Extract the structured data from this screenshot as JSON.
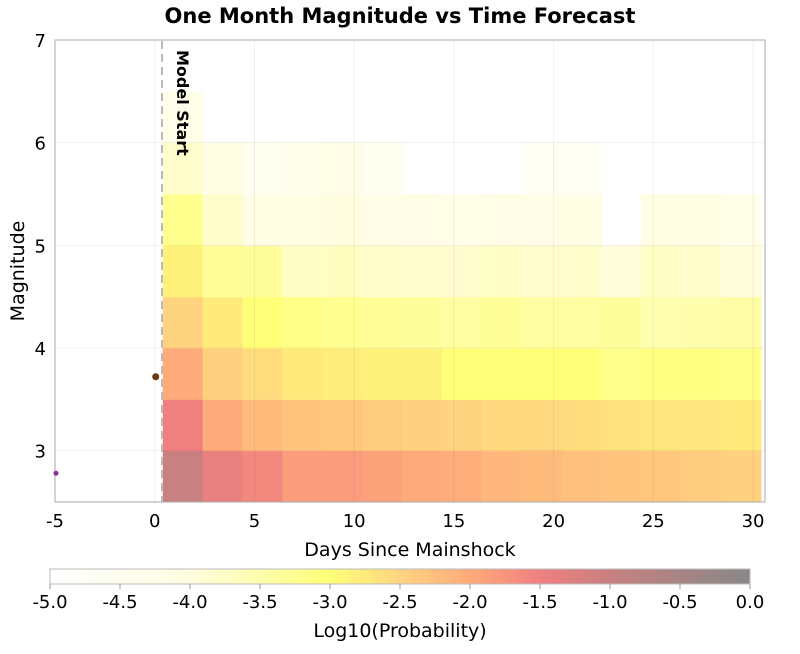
{
  "chart_data": {
    "type": "heatmap",
    "title": "One Month Magnitude vs Time Forecast",
    "xlabel": "Days Since Mainshock",
    "ylabel": "Magnitude",
    "xlim": [
      -5,
      30.6
    ],
    "ylim": [
      2.5,
      7
    ],
    "xticks": [
      -5,
      0,
      5,
      10,
      15,
      20,
      25,
      30
    ],
    "yticks": [
      3,
      4,
      5,
      6,
      7
    ],
    "grid": true,
    "annotation": {
      "text": "Model Start",
      "x": 0.4
    },
    "time_bin_starts": [
      0.4,
      2.4,
      4.4,
      6.4,
      8.4,
      10.4,
      12.4,
      14.4,
      16.4,
      18.4,
      20.4,
      22.4,
      24.4,
      26.4,
      28.4
    ],
    "time_bin_width": 2.0,
    "mag_bin_starts": [
      2.5,
      3.0,
      3.5,
      4.0,
      4.5,
      5.0,
      5.5,
      6.0
    ],
    "mag_bin_width": 0.5,
    "log10_probability": [
      [
        -1.0,
        -1.4,
        -1.6,
        -1.85,
        -1.85,
        -1.9,
        -2.0,
        -2.05,
        -2.15,
        -2.2,
        -2.25,
        -2.3,
        -2.35,
        -2.4,
        -2.45
      ],
      [
        -1.5,
        -2.0,
        -2.2,
        -2.3,
        -2.35,
        -2.4,
        -2.45,
        -2.5,
        -2.55,
        -2.55,
        -2.6,
        -2.65,
        -2.7,
        -2.7,
        -2.75
      ],
      [
        -2.0,
        -2.45,
        -2.6,
        -2.75,
        -2.8,
        -2.85,
        -2.85,
        -3.0,
        -3.0,
        -3.0,
        -3.0,
        -3.2,
        -3.1,
        -3.1,
        -3.15
      ],
      [
        -2.5,
        -2.75,
        -3.0,
        -3.15,
        -3.25,
        -3.3,
        -3.35,
        -3.4,
        -3.3,
        -3.4,
        -3.4,
        -3.35,
        -3.55,
        -3.5,
        -3.45
      ],
      [
        -2.85,
        -3.3,
        -3.35,
        -3.75,
        -3.7,
        -3.8,
        -3.85,
        -3.85,
        -3.75,
        -3.85,
        -3.8,
        -3.95,
        -3.75,
        -3.8,
        -3.95
      ],
      [
        -3.2,
        -3.8,
        -4.1,
        -4.1,
        -4.0,
        -4.15,
        -4.2,
        -4.25,
        -4.2,
        -4.15,
        -4.1,
        null,
        -4.1,
        -4.1,
        -4.3
      ],
      [
        -3.8,
        -4.1,
        -4.5,
        -4.4,
        -4.2,
        -4.5,
        null,
        null,
        null,
        -4.6,
        -4.6,
        null,
        null,
        null,
        null
      ],
      [
        -4.3,
        null,
        null,
        null,
        null,
        null,
        null,
        null,
        null,
        null,
        null,
        null,
        null,
        null,
        null
      ]
    ],
    "observed_events": [
      {
        "day": 0,
        "magnitude": 3.72,
        "color": "#6b3a10"
      },
      {
        "day": -5,
        "magnitude": 2.78,
        "color": "#8a2a9a"
      }
    ],
    "colorbar": {
      "label": "Log10(Probability)",
      "range": [
        -5.0,
        0.0
      ],
      "ticks": [
        "-5.0",
        "-4.5",
        "-4.0",
        "-3.5",
        "-3.0",
        "-2.5",
        "-2.0",
        "-1.5",
        "-1.0",
        "-0.5",
        "0.0"
      ],
      "stops": [
        {
          "v": -5.0,
          "color": "#ffffff"
        },
        {
          "v": -4.0,
          "color": "#fffde0"
        },
        {
          "v": -3.0,
          "color": "#ffff78"
        },
        {
          "v": -2.5,
          "color": "#ffd480"
        },
        {
          "v": -2.0,
          "color": "#ffaa7a"
        },
        {
          "v": -1.5,
          "color": "#f08080"
        },
        {
          "v": -1.0,
          "color": "#c88080"
        },
        {
          "v": 0.0,
          "color": "#888888"
        }
      ]
    }
  }
}
